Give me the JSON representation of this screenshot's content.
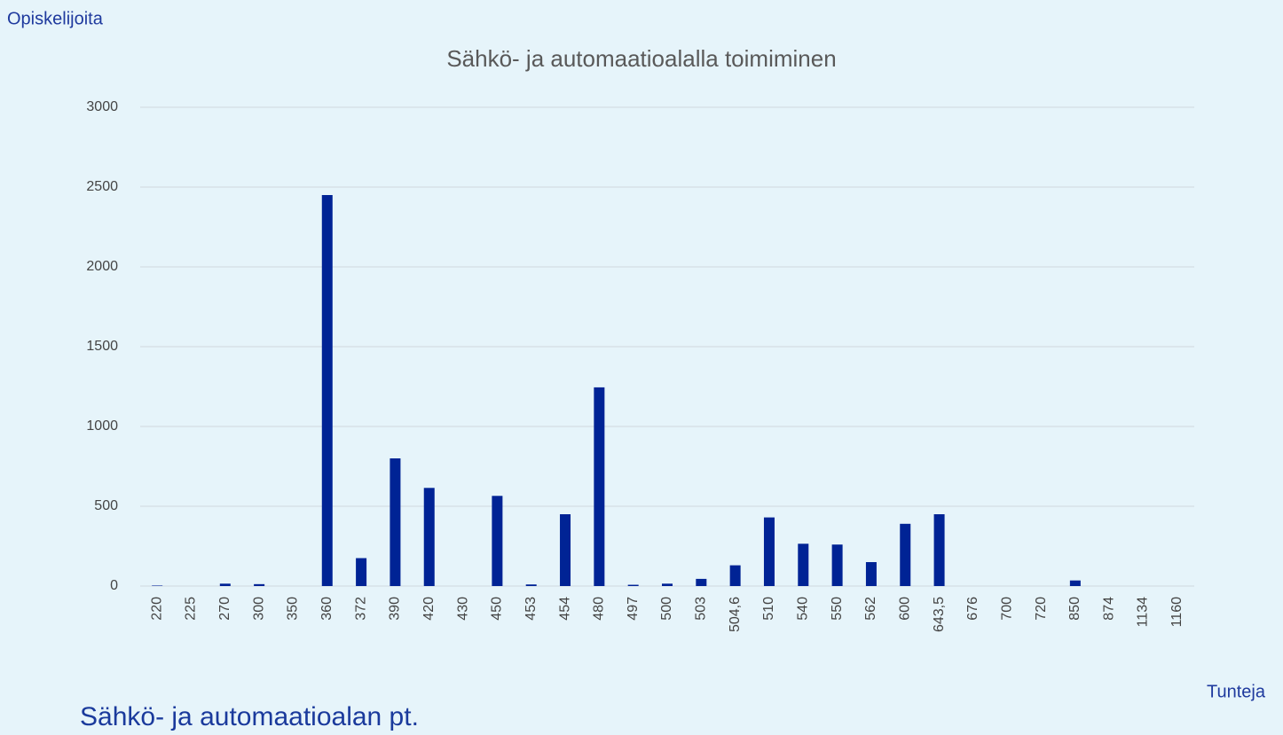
{
  "chart_data": {
    "type": "bar",
    "title": "Sähkö- ja automaatioalalla toimiminen",
    "y_axis_label": "Opiskelijoita",
    "x_axis_label": "Tunteja",
    "categories": [
      "220",
      "225",
      "270",
      "300",
      "350",
      "360",
      "372",
      "390",
      "420",
      "430",
      "450",
      "453",
      "454",
      "480",
      "497",
      "500",
      "503",
      "504,6",
      "510",
      "540",
      "550",
      "562",
      "600",
      "643,5",
      "676",
      "700",
      "720",
      "850",
      "874",
      "1134",
      "1160"
    ],
    "values": [
      3,
      0,
      15,
      12,
      0,
      2450,
      175,
      800,
      615,
      0,
      565,
      10,
      450,
      1245,
      8,
      15,
      45,
      130,
      430,
      265,
      260,
      150,
      390,
      450,
      0,
      0,
      0,
      35,
      0,
      0,
      0
    ],
    "color": "#002395",
    "ylim": [
      0,
      3000
    ],
    "yticks": [
      0,
      500,
      1000,
      1500,
      2000,
      2500,
      3000
    ],
    "grid": true
  },
  "footer": "Sähkö- ja automaatioalan pt."
}
